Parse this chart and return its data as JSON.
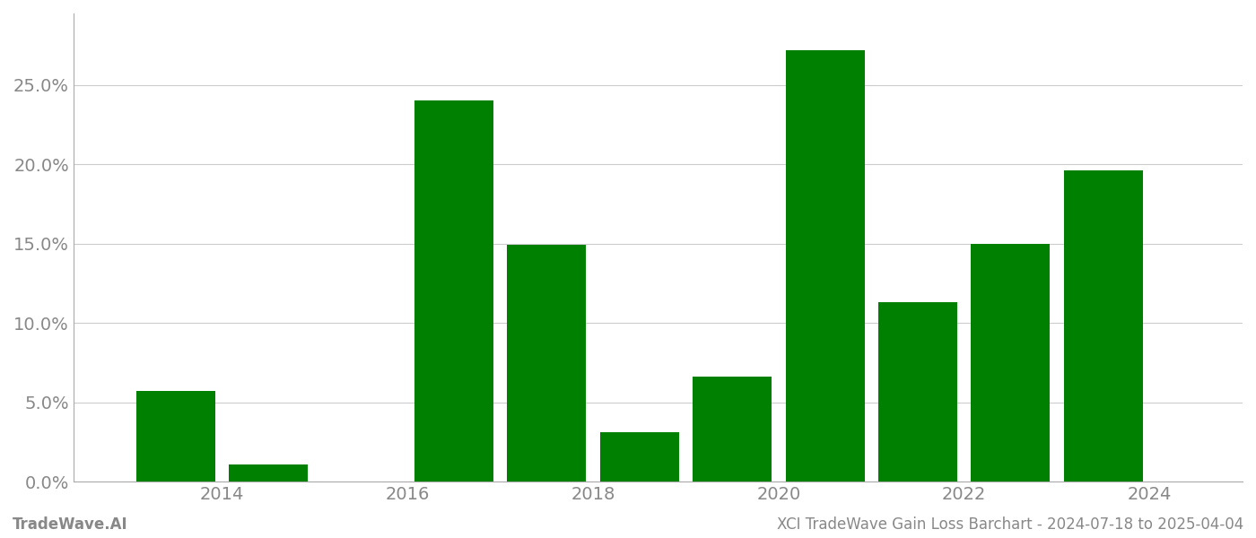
{
  "years": [
    2013,
    2014,
    2015,
    2016,
    2017,
    2018,
    2019,
    2020,
    2021,
    2022,
    2023
  ],
  "values": [
    0.057,
    0.011,
    0.0,
    0.24,
    0.149,
    0.031,
    0.066,
    0.272,
    0.113,
    0.15,
    0.196
  ],
  "bar_color": "#008000",
  "background_color": "#ffffff",
  "grid_color": "#cccccc",
  "axis_label_color": "#888888",
  "ylabel_ticks": [
    0.0,
    0.05,
    0.1,
    0.15,
    0.2,
    0.25
  ],
  "xlim": [
    2012.4,
    2025.0
  ],
  "ylim": [
    0.0,
    0.295
  ],
  "footer_left": "TradeWave.AI",
  "footer_right": "XCI TradeWave Gain Loss Barchart - 2024-07-18 to 2025-04-04",
  "footer_color": "#888888",
  "bar_width": 0.85,
  "xtick_years": [
    2014,
    2016,
    2018,
    2020,
    2022,
    2024
  ],
  "spine_color": "#aaaaaa"
}
